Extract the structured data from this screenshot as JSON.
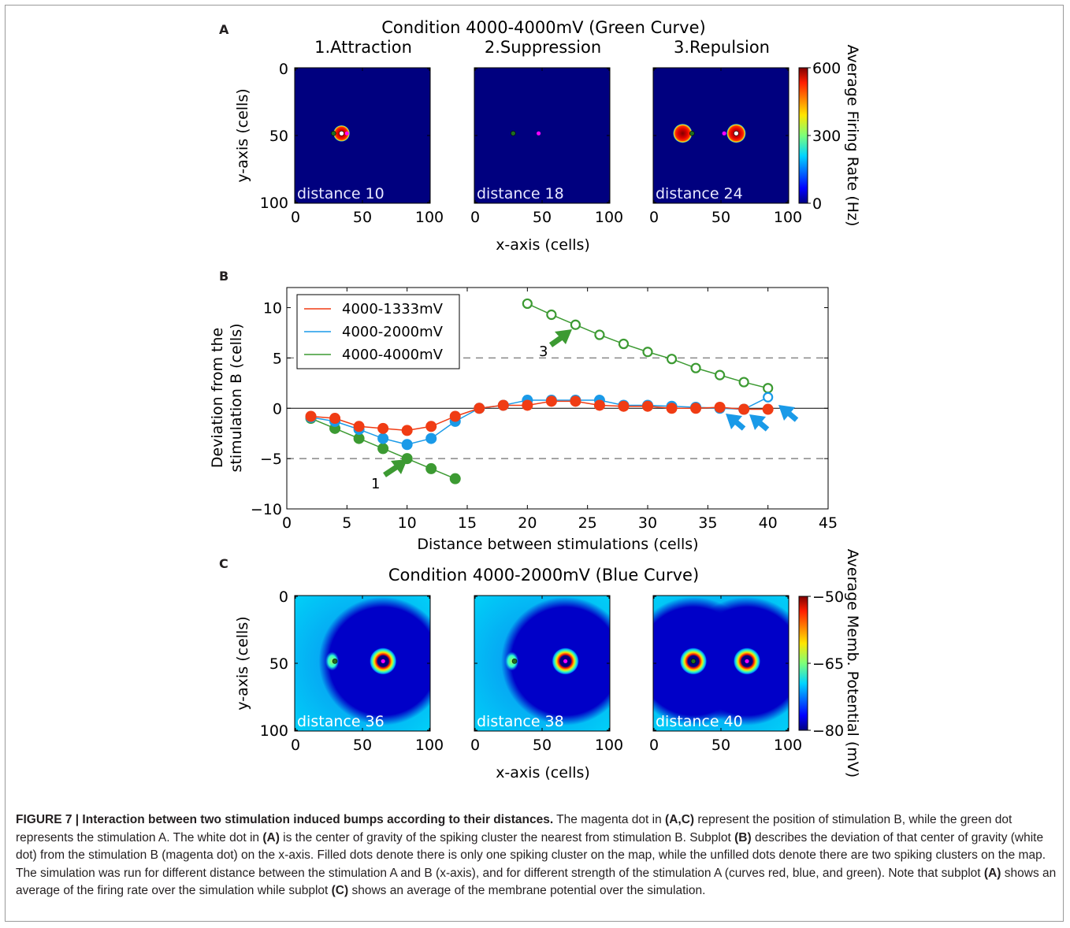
{
  "panels": {
    "A": {
      "letter": "A",
      "title": "Condition 4000-4000mV (Green Curve)",
      "subplots": [
        {
          "title": "1.Attraction",
          "distance": "distance 10"
        },
        {
          "title": "2.Suppression",
          "distance": "distance 18"
        },
        {
          "title": "3.Repulsion",
          "distance": "distance 24"
        }
      ],
      "ylabel": "y-axis (cells)",
      "xlabel": "x-axis (cells)",
      "xticks": [
        "0",
        "50",
        "100"
      ],
      "yticks": [
        "0",
        "50",
        "100"
      ],
      "colorbar": {
        "label": "Average Firing Rate (Hz)",
        "ticks": [
          "600",
          "300",
          "0"
        ]
      }
    },
    "B": {
      "letter": "B",
      "xlabel": "Distance between stimulations (cells)",
      "ylabel_line1": "Deviation from the",
      "ylabel_line2": "stimulation B (cells)",
      "annotations": [
        "1",
        "3"
      ],
      "xticks": [
        "0",
        "5",
        "10",
        "15",
        "20",
        "25",
        "30",
        "35",
        "40",
        "45"
      ],
      "yticks": [
        "10",
        "5",
        "0",
        "−5",
        "−10"
      ]
    },
    "C": {
      "letter": "C",
      "title": "Condition 4000-2000mV (Blue Curve)",
      "subplots": [
        {
          "distance": "distance 36"
        },
        {
          "distance": "distance 38"
        },
        {
          "distance": "distance 40"
        }
      ],
      "ylabel": "y-axis (cells)",
      "xlabel": "x-axis (cells)",
      "xticks": [
        "0",
        "50",
        "100"
      ],
      "yticks": [
        "0",
        "50",
        "100"
      ],
      "colorbar": {
        "label": "Average Memb. Potential (mV)",
        "ticks": [
          "−50",
          "−65",
          "−80"
        ]
      }
    }
  },
  "chart_data": {
    "type": "line",
    "xlabel": "Distance between stimulations (cells)",
    "ylabel": "Deviation from the stimulation B (cells)",
    "xlim": [
      0,
      45
    ],
    "ylim": [
      -10,
      12
    ],
    "reference_lines": [
      5,
      -5,
      0
    ],
    "legend_position": "upper-left",
    "series": [
      {
        "name": "4000-1333mV",
        "color": "#f03c14",
        "x": [
          2,
          4,
          6,
          8,
          10,
          12,
          14,
          16,
          18,
          20,
          22,
          24,
          26,
          28,
          30,
          32,
          34,
          36,
          38,
          40
        ],
        "y": [
          -0.8,
          -1.0,
          -1.8,
          -2.0,
          -2.2,
          -1.8,
          -0.8,
          0.0,
          0.3,
          0.3,
          0.7,
          0.7,
          0.3,
          0.2,
          0.2,
          0.0,
          0.0,
          0.1,
          -0.1,
          -0.1
        ],
        "filled": [
          true,
          true,
          true,
          true,
          true,
          true,
          true,
          true,
          true,
          true,
          true,
          true,
          true,
          true,
          true,
          true,
          true,
          true,
          true,
          true
        ]
      },
      {
        "name": "4000-2000mV",
        "color": "#1a9ae8",
        "x": [
          2,
          4,
          6,
          8,
          10,
          12,
          14,
          16,
          18,
          20,
          22,
          24,
          26,
          28,
          30,
          32,
          34,
          36,
          38,
          40
        ],
        "y": [
          -0.9,
          -1.3,
          -2.1,
          -3.0,
          -3.6,
          -3.0,
          -1.3,
          0.0,
          0.3,
          0.8,
          0.8,
          0.8,
          0.8,
          0.3,
          0.3,
          0.2,
          0.1,
          0.0,
          -0.1,
          1.1
        ],
        "filled": [
          true,
          true,
          true,
          true,
          true,
          true,
          true,
          true,
          true,
          true,
          true,
          true,
          true,
          true,
          true,
          true,
          true,
          true,
          true,
          false
        ]
      },
      {
        "name": "4000-4000mV",
        "color": "#3c9a32",
        "x": [
          2,
          4,
          6,
          8,
          10,
          12,
          14,
          20,
          22,
          24,
          26,
          28,
          30,
          32,
          34,
          36,
          38,
          40
        ],
        "y": [
          -1.0,
          -2.0,
          -3.0,
          -4.0,
          -5.0,
          -6.0,
          -7.0,
          10.4,
          9.3,
          8.3,
          7.3,
          6.4,
          5.6,
          4.9,
          4.0,
          3.3,
          2.6,
          2.0
        ],
        "filled": [
          true,
          true,
          true,
          true,
          true,
          true,
          true,
          false,
          false,
          false,
          false,
          false,
          false,
          false,
          false,
          false,
          false,
          false
        ]
      }
    ]
  },
  "heatmaps": {
    "A": [
      {
        "green": 29,
        "magenta": 39,
        "white": 35,
        "blobs": [
          {
            "x": 35,
            "r": 6
          }
        ]
      },
      {
        "green": 29,
        "magenta": 48,
        "white": null,
        "blobs": []
      },
      {
        "green": 29,
        "magenta": 53,
        "white": 62,
        "blobs": [
          {
            "x": 22,
            "r": 7
          },
          {
            "x": 62,
            "r": 7
          }
        ]
      }
    ],
    "C": [
      {
        "green": 30,
        "magenta": 66,
        "rings": [
          66
        ],
        "small": [
          28
        ]
      },
      {
        "green": 30,
        "magenta": 68,
        "rings": [
          68
        ],
        "small": [
          28
        ]
      },
      {
        "green": 30,
        "magenta": 70,
        "rings": [
          30,
          70
        ],
        "small": []
      }
    ]
  },
  "caption": {
    "figure_label": "FIGURE 7 | Interaction between two stimulation induced bumps according to their distances.",
    "s1": " The magenta dot in ",
    "ref_ac": "(A,C)",
    "s2": " represent the position of stimulation B, while the green dot represents the stimulation A. The white dot in ",
    "ref_a1": "(A)",
    "s3": " is the center of gravity of the spiking cluster the nearest from stimulation B. Subplot ",
    "ref_b": "(B)",
    "s4": " describes the deviation of that center of gravity (white dot) from the stimulation B (magenta dot) on the x-axis. Filled dots denote there is only one spiking cluster on the map, while the unfilled dots denote there are two spiking clusters on the map. The simulation was run for different distance between the stimulation A and B (x-axis), and for different strength of the stimulation A (curves red, blue, and green). Note that subplot ",
    "ref_a2": "(A)",
    "s5": " shows an average of the firing rate over the simulation while subplot ",
    "ref_c": "(C)",
    "s6": " shows an average of the membrane potential over the simulation."
  }
}
